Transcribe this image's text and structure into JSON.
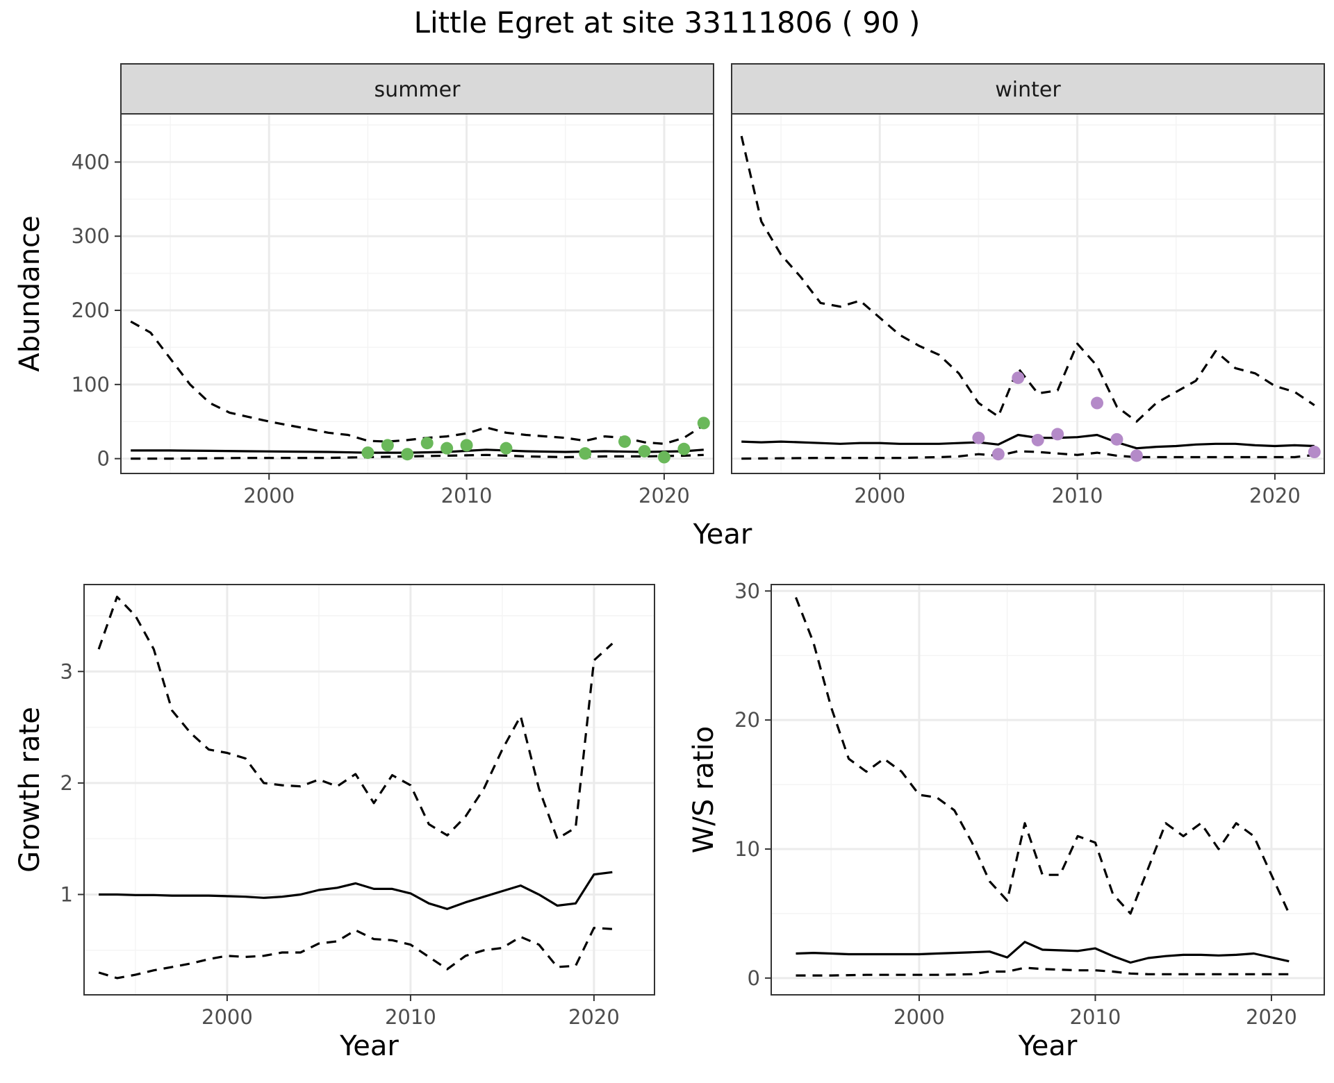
{
  "figure_title": "Little Egret at site 33111806 ( 90 )",
  "colors": {
    "summer_points": "#6ab85a",
    "winter_points": "#b48ac8",
    "line": "#000000",
    "grid_major": "#ebebeb",
    "grid_minor": "#f4f4f4",
    "strip_bg": "#d9d9d9",
    "panel_border": "#333333"
  },
  "chart_data": [
    {
      "type": "line",
      "facet": "summer",
      "xlabel": "Year",
      "ylabel": "Abundance",
      "xlim": [
        1992.5,
        2022.5
      ],
      "ylim": [
        -20,
        465
      ],
      "xticks": [
        2000,
        2010,
        2020
      ],
      "yticks": [
        0,
        100,
        200,
        300,
        400
      ],
      "grid": true,
      "series": [
        {
          "role": "estimate",
          "style": "solid",
          "x": [
            1993,
            1995,
            1997,
            1999,
            2001,
            2003,
            2005,
            2007,
            2009,
            2011,
            2013,
            2015,
            2017,
            2019,
            2021,
            2022
          ],
          "y": [
            11,
            11,
            10.5,
            10,
            9.5,
            9,
            8,
            8,
            9,
            12,
            10,
            9,
            10,
            9,
            10,
            12
          ]
        },
        {
          "role": "upper",
          "style": "dashed",
          "x": [
            1993,
            1994,
            1995,
            1996,
            1997,
            1998,
            1999,
            2000,
            2001,
            2002,
            2003,
            2004,
            2005,
            2006,
            2007,
            2008,
            2009,
            2010,
            2011,
            2012,
            2013,
            2014,
            2015,
            2016,
            2017,
            2018,
            2019,
            2020,
            2021,
            2022
          ],
          "y": [
            185,
            170,
            135,
            100,
            75,
            62,
            56,
            50,
            45,
            40,
            35,
            32,
            24,
            23,
            25,
            28,
            30,
            34,
            42,
            35,
            32,
            30,
            28,
            24,
            30,
            28,
            22,
            20,
            28,
            45
          ]
        },
        {
          "role": "lower",
          "style": "dashed",
          "x": [
            1993,
            1995,
            1997,
            1999,
            2001,
            2003,
            2005,
            2007,
            2009,
            2011,
            2013,
            2015,
            2017,
            2019,
            2021,
            2022
          ],
          "y": [
            0,
            0,
            0.5,
            1,
            1,
            1,
            2,
            3,
            4,
            5,
            3,
            2,
            3,
            3,
            4,
            5
          ]
        },
        {
          "role": "observed",
          "style": "points",
          "x": [
            2005,
            2006,
            2007,
            2008,
            2009,
            2010,
            2012,
            2016,
            2018,
            2019,
            2020,
            2021,
            2022
          ],
          "y": [
            8,
            18,
            6,
            21,
            14,
            18,
            14,
            7,
            23,
            10,
            2,
            13,
            48
          ]
        }
      ]
    },
    {
      "type": "line",
      "facet": "winter",
      "xlabel": "Year",
      "ylabel": "",
      "xlim": [
        1992.5,
        2022.5
      ],
      "ylim": [
        -20,
        465
      ],
      "xticks": [
        2000,
        2010,
        2020
      ],
      "yticks": [
        0,
        100,
        200,
        300,
        400
      ],
      "grid": true,
      "series": [
        {
          "role": "estimate",
          "style": "solid",
          "x": [
            1993,
            1994,
            1995,
            1996,
            1997,
            1998,
            1999,
            2000,
            2001,
            2002,
            2003,
            2004,
            2005,
            2006,
            2007,
            2008,
            2009,
            2010,
            2011,
            2012,
            2013,
            2014,
            2015,
            2016,
            2017,
            2018,
            2019,
            2020,
            2021,
            2022
          ],
          "y": [
            23,
            22,
            23,
            22,
            21,
            20,
            21,
            21,
            20,
            20,
            20,
            21,
            22,
            19,
            32,
            28,
            28,
            29,
            32,
            22,
            14,
            16,
            17,
            19,
            20,
            20,
            18,
            17,
            18,
            17
          ]
        },
        {
          "role": "upper",
          "style": "dashed",
          "x": [
            1993,
            1994,
            1995,
            1996,
            1997,
            1998,
            1999,
            2000,
            2001,
            2002,
            2003,
            2004,
            2005,
            2006,
            2007,
            2008,
            2009,
            2010,
            2011,
            2012,
            2013,
            2014,
            2015,
            2016,
            2017,
            2018,
            2019,
            2020,
            2021,
            2022
          ],
          "y": [
            435,
            320,
            275,
            245,
            210,
            205,
            213,
            190,
            167,
            152,
            140,
            115,
            75,
            57,
            122,
            88,
            92,
            155,
            125,
            70,
            50,
            75,
            90,
            105,
            145,
            122,
            115,
            98,
            90,
            72
          ]
        },
        {
          "role": "lower",
          "style": "dashed",
          "x": [
            1993,
            1995,
            1997,
            1999,
            2001,
            2003,
            2004,
            2005,
            2006,
            2007,
            2008,
            2009,
            2010,
            2011,
            2012,
            2013,
            2015,
            2017,
            2019,
            2021,
            2022
          ],
          "y": [
            0,
            0.5,
            1,
            1,
            1,
            2,
            3,
            6,
            4,
            10,
            9,
            7,
            5,
            8,
            4,
            2,
            2,
            2,
            2,
            2,
            5
          ]
        },
        {
          "role": "observed",
          "style": "points",
          "x": [
            2005,
            2006,
            2007,
            2008,
            2009,
            2011,
            2012,
            2013,
            2022
          ],
          "y": [
            28,
            6,
            109,
            25,
            33,
            75,
            26,
            4,
            9
          ]
        }
      ]
    },
    {
      "type": "line",
      "facet": "",
      "xlabel": "Year",
      "ylabel": "Growth rate",
      "xlim": [
        1992.2,
        2023.3
      ],
      "ylim": [
        0.1,
        3.78
      ],
      "xticks": [
        2000,
        2010,
        2020
      ],
      "yticks": [
        1,
        2,
        3
      ],
      "grid": true,
      "series": [
        {
          "role": "estimate",
          "style": "solid",
          "x": [
            1993,
            1994,
            1995,
            1996,
            1997,
            1998,
            1999,
            2000,
            2001,
            2002,
            2003,
            2004,
            2005,
            2006,
            2007,
            2008,
            2009,
            2010,
            2011,
            2012,
            2013,
            2014,
            2015,
            2016,
            2017,
            2018,
            2019,
            2020,
            2021
          ],
          "y": [
            1.0,
            1.0,
            0.995,
            0.995,
            0.99,
            0.99,
            0.99,
            0.985,
            0.98,
            0.97,
            0.98,
            1.0,
            1.04,
            1.06,
            1.1,
            1.05,
            1.05,
            1.01,
            0.92,
            0.87,
            0.93,
            0.98,
            1.03,
            1.08,
            1.0,
            0.9,
            0.92,
            1.18,
            1.2
          ]
        },
        {
          "role": "upper",
          "style": "dashed",
          "x": [
            1993,
            1994,
            1995,
            1996,
            1997,
            1998,
            1999,
            2000,
            2001,
            2002,
            2003,
            2004,
            2005,
            2006,
            2007,
            2008,
            2009,
            2010,
            2011,
            2012,
            2013,
            2014,
            2015,
            2016,
            2017,
            2018,
            2019,
            2020,
            2021
          ],
          "y": [
            3.2,
            3.67,
            3.5,
            3.2,
            2.65,
            2.45,
            2.3,
            2.27,
            2.22,
            2.0,
            1.98,
            1.97,
            2.03,
            1.97,
            2.08,
            1.82,
            2.07,
            1.98,
            1.63,
            1.53,
            1.7,
            1.95,
            2.3,
            2.6,
            1.95,
            1.5,
            1.6,
            3.1,
            3.25
          ]
        },
        {
          "role": "lower",
          "style": "dashed",
          "x": [
            1993,
            1994,
            1995,
            1996,
            1997,
            1998,
            1999,
            2000,
            2001,
            2002,
            2003,
            2004,
            2005,
            2006,
            2007,
            2008,
            2009,
            2010,
            2011,
            2012,
            2013,
            2014,
            2015,
            2016,
            2017,
            2018,
            2019,
            2020,
            2021
          ],
          "y": [
            0.3,
            0.25,
            0.28,
            0.32,
            0.35,
            0.38,
            0.42,
            0.45,
            0.44,
            0.45,
            0.48,
            0.48,
            0.56,
            0.58,
            0.68,
            0.6,
            0.59,
            0.55,
            0.44,
            0.33,
            0.45,
            0.5,
            0.52,
            0.62,
            0.55,
            0.35,
            0.36,
            0.7,
            0.69
          ]
        }
      ]
    },
    {
      "type": "line",
      "facet": "",
      "xlabel": "Year",
      "ylabel": "W/S ratio",
      "xlim": [
        1991.6,
        2023.0
      ],
      "ylim": [
        -1.3,
        30.5
      ],
      "xticks": [
        2000,
        2010,
        2020
      ],
      "yticks": [
        0,
        10,
        20,
        30
      ],
      "grid": true,
      "series": [
        {
          "role": "estimate",
          "style": "solid",
          "x": [
            1993,
            1994,
            1995,
            1996,
            1997,
            1998,
            1999,
            2000,
            2001,
            2002,
            2003,
            2004,
            2005,
            2006,
            2007,
            2008,
            2009,
            2010,
            2011,
            2012,
            2013,
            2014,
            2015,
            2016,
            2017,
            2018,
            2019,
            2020,
            2021
          ],
          "y": [
            1.9,
            1.95,
            1.9,
            1.85,
            1.85,
            1.85,
            1.85,
            1.85,
            1.9,
            1.95,
            2.0,
            2.05,
            1.6,
            2.8,
            2.2,
            2.15,
            2.1,
            2.3,
            1.7,
            1.2,
            1.55,
            1.7,
            1.8,
            1.8,
            1.75,
            1.8,
            1.9,
            1.6,
            1.3
          ]
        },
        {
          "role": "upper",
          "style": "dashed",
          "x": [
            1993,
            1994,
            1995,
            1996,
            1997,
            1998,
            1999,
            2000,
            2001,
            2002,
            2003,
            2004,
            2005,
            2006,
            2007,
            2008,
            2009,
            2010,
            2011,
            2012,
            2013,
            2014,
            2015,
            2016,
            2017,
            2018,
            2019,
            2020,
            2021
          ],
          "y": [
            29.5,
            26,
            21,
            17,
            16,
            17,
            16,
            14.2,
            14,
            13,
            10.5,
            7.5,
            6,
            12,
            8,
            8,
            11,
            10.5,
            6.5,
            5,
            8.5,
            12,
            11,
            12,
            10,
            12,
            11,
            8,
            5
          ]
        },
        {
          "role": "lower",
          "style": "dashed",
          "x": [
            1993,
            1995,
            1997,
            1999,
            2001,
            2003,
            2004,
            2005,
            2006,
            2007,
            2008,
            2009,
            2010,
            2011,
            2012,
            2013,
            2015,
            2017,
            2019,
            2021
          ],
          "y": [
            0.2,
            0.2,
            0.25,
            0.25,
            0.25,
            0.3,
            0.5,
            0.5,
            0.8,
            0.7,
            0.65,
            0.6,
            0.6,
            0.5,
            0.35,
            0.3,
            0.3,
            0.3,
            0.3,
            0.3
          ]
        }
      ]
    }
  ]
}
